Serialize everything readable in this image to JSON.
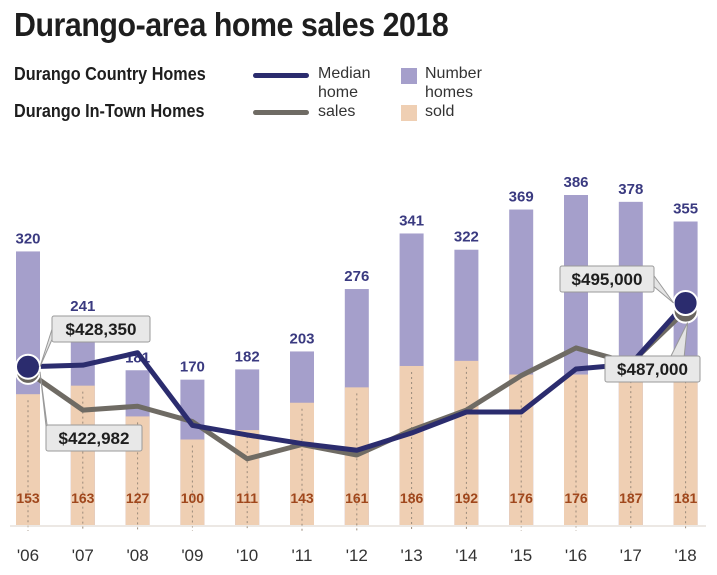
{
  "chart_data": {
    "type": "bar",
    "title": "Durango-area home sales 2018",
    "categories": [
      "'06",
      "'07",
      "'08",
      "'09",
      "'10",
      "'11",
      "'12",
      "'13",
      "'14",
      "'15",
      "'16",
      "'17",
      "'18"
    ],
    "series": [
      {
        "name": "Durango Country Homes",
        "kind": "bar",
        "label_color": "#3a3a80",
        "color": "#a59fcb",
        "values": [
          320,
          241,
          181,
          170,
          182,
          203,
          276,
          341,
          322,
          369,
          386,
          378,
          355
        ]
      },
      {
        "name": "Durango In-Town Homes",
        "kind": "bar",
        "label_color": "#a0471c",
        "color": "#efcfb3",
        "values": [
          153,
          163,
          127,
          100,
          111,
          143,
          161,
          186,
          192,
          176,
          176,
          187,
          181
        ]
      },
      {
        "name": "Durango Country Homes",
        "kind": "line",
        "color": "#2b2c6e",
        "values": [
          428350,
          430000,
          443000,
          367000,
          357000,
          348000,
          341000,
          359000,
          381000,
          381000,
          426000,
          431000,
          495000
        ]
      },
      {
        "name": "Durango In-Town Homes",
        "kind": "line",
        "color": "#6f6b64",
        "values": [
          422982,
          383000,
          387000,
          371000,
          332000,
          347000,
          336000,
          362000,
          383000,
          419000,
          448000,
          432000,
          487000
        ]
      }
    ],
    "annotations": [
      {
        "text": "$428,350",
        "series": 2,
        "index": 0
      },
      {
        "text": "$422,982",
        "series": 3,
        "index": 0
      },
      {
        "text": "$495,000",
        "series": 2,
        "index": 12
      },
      {
        "text": "$487,000",
        "series": 3,
        "index": 12
      }
    ],
    "legend": {
      "country": "Durango Country Homes",
      "intown": "Durango In-Town Homes",
      "median_label": "Median home sales",
      "number_label": "Number homes sold"
    },
    "grid": false,
    "colors": {
      "title": "#1e1e1e",
      "axis": "#333333"
    }
  }
}
